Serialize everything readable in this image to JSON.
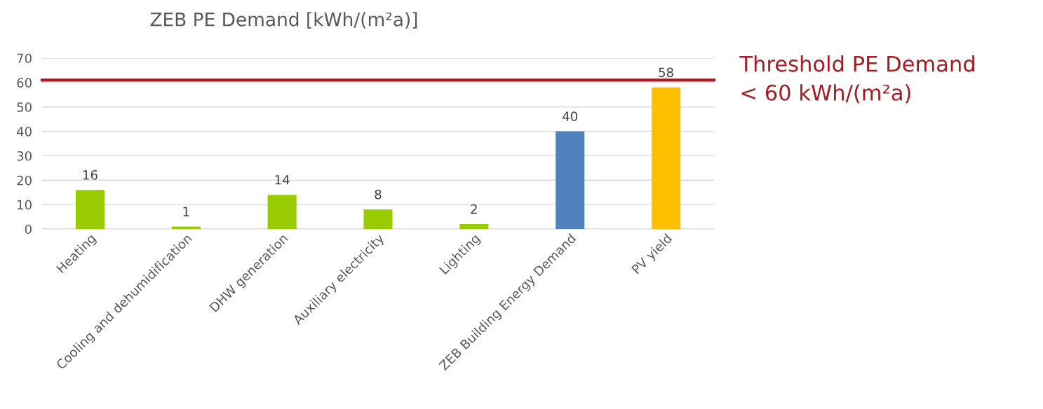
{
  "chart_data": {
    "type": "bar",
    "title": "ZEB PE Demand [kWh/(m²a)]",
    "categories": [
      "Heating",
      "Cooling and dehumidification",
      "DHW generation",
      "Auxiliary electricity",
      "Lighting",
      "ZEB Building Energy Demand",
      "PV yield"
    ],
    "values": [
      16,
      1,
      14,
      8,
      2,
      40,
      58
    ],
    "colors": [
      "#99cc00",
      "#99cc00",
      "#99cc00",
      "#99cc00",
      "#99cc00",
      "#4f81bd",
      "#ffc000"
    ],
    "ylim": [
      0,
      70
    ],
    "yticks": [
      0,
      10,
      20,
      30,
      40,
      50,
      60,
      70
    ],
    "grid": "y",
    "data_labels": true,
    "ref_lines": [
      {
        "axis": "y",
        "value": 61,
        "label": "Threshold PE Demand\n< 60 kWh/(m²a)",
        "color": "#a51c24"
      }
    ]
  }
}
